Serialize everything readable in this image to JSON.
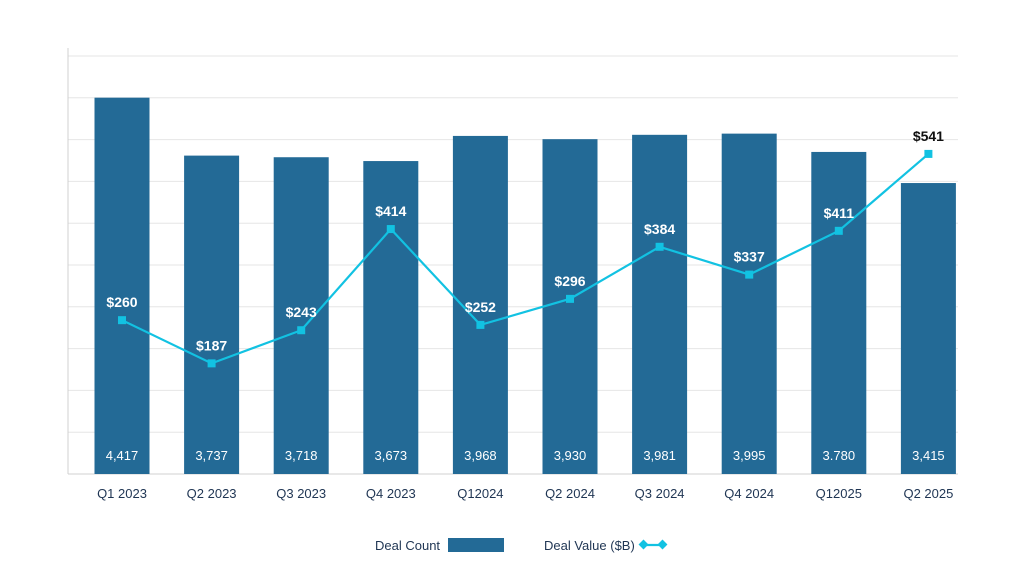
{
  "chart_data": {
    "type": "bar+line",
    "categories": [
      "Q1 2023",
      "Q2 2023",
      "Q3 2023",
      "Q4 2023",
      "Q12024",
      "Q2 2024",
      "Q3 2024",
      "Q4 2024",
      "Q12025",
      "Q2 2025"
    ],
    "series": [
      {
        "name": "Deal Count",
        "type": "bar",
        "values": [
          4417,
          3737,
          3718,
          3673,
          3968,
          3930,
          3981,
          3995,
          3780,
          3415
        ],
        "labels": [
          "4,417",
          "3,737",
          "3,718",
          "3,673",
          "3,968",
          "3,930",
          "3,981",
          "3,995",
          "3.780",
          "3,415"
        ]
      },
      {
        "name": "Deal Value ($B)",
        "type": "line",
        "values": [
          260,
          187,
          243,
          414,
          252,
          296,
          384,
          337,
          411,
          541
        ],
        "labels": [
          "$260",
          "$187",
          "$243",
          "$414",
          "$252",
          "$296",
          "$384",
          "$337",
          "$411",
          "$541"
        ]
      }
    ],
    "legend": {
      "position": "bottom",
      "entries": [
        "Deal Count",
        "Deal Value ($B)"
      ]
    },
    "colors": {
      "bar": "#236a96",
      "line": "#12c2e2"
    },
    "grid": true
  }
}
